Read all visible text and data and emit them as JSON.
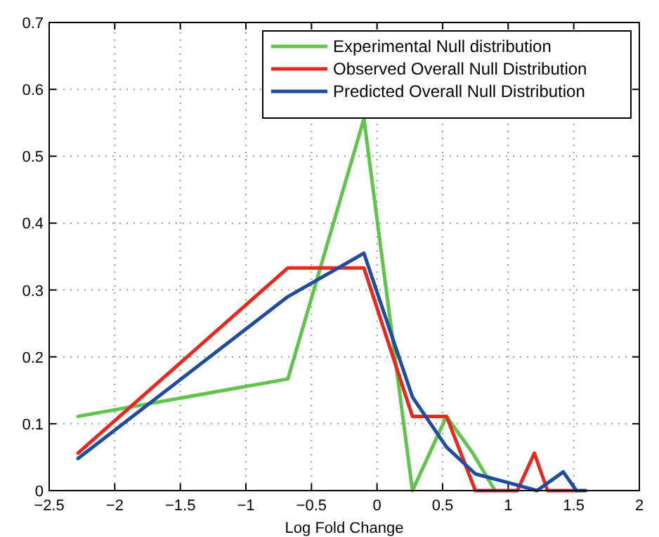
{
  "chart_data": {
    "type": "line",
    "xlabel": "Log Fold Change",
    "xlim": [
      -2.5,
      2
    ],
    "xticks": [
      -2.5,
      -2,
      -1.5,
      -1,
      -0.5,
      0,
      0.5,
      1,
      1.5,
      2
    ],
    "ylim": [
      0,
      0.7
    ],
    "yticks": [
      0,
      0.1,
      0.2,
      0.3,
      0.4,
      0.5,
      0.6,
      0.7
    ],
    "grid": true,
    "legend": "top right",
    "line_style": "solid",
    "marker": "none",
    "series": [
      {
        "name": "Experimental Null distribution",
        "color": "#5ec44a",
        "x": [
          -2.28,
          -0.68,
          -0.1,
          0.27,
          0.53,
          0.73,
          0.9
        ],
        "values": [
          0.111,
          0.167,
          0.556,
          0,
          0.111,
          0.056,
          0
        ]
      },
      {
        "name": "Observed Overall Null Distribution",
        "color": "#e8281e",
        "x": [
          -2.28,
          -0.68,
          -0.1,
          0.27,
          0.53,
          0.75,
          1.07,
          1.2,
          1.3,
          1.52
        ],
        "values": [
          0.056,
          0.333,
          0.333,
          0.111,
          0.111,
          0,
          0,
          0.056,
          0,
          0
        ]
      },
      {
        "name": "Predicted Overall Null Distribution",
        "color": "#1f4c9e",
        "x": [
          -2.28,
          -0.68,
          -0.1,
          0.27,
          0.53,
          0.75,
          1.0,
          1.22,
          1.42,
          1.52,
          1.59
        ],
        "values": [
          0.048,
          0.29,
          0.355,
          0.14,
          0.065,
          0.025,
          0.012,
          0,
          0.028,
          0,
          0
        ]
      }
    ]
  }
}
